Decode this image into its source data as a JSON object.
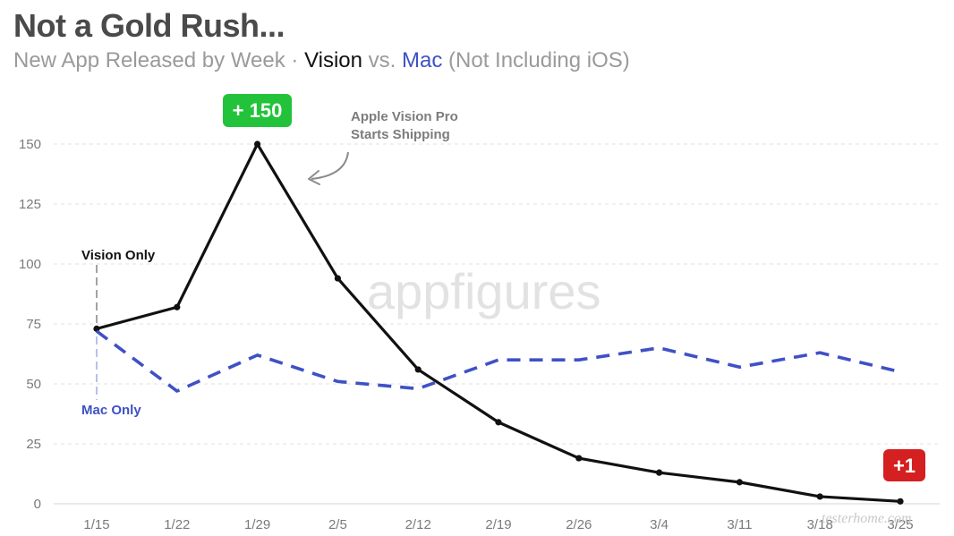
{
  "chart_data": {
    "type": "line",
    "title": "Not a Gold Rush...",
    "subtitle": {
      "prefix": "New App Released by Week · ",
      "vision": "Vision",
      "vs": " vs. ",
      "mac": "Mac",
      "suffix": " (Not Including iOS)"
    },
    "categories": [
      "1/15",
      "1/22",
      "1/29",
      "2/5",
      "2/12",
      "2/19",
      "2/26",
      "3/4",
      "3/11",
      "3/18",
      "3/25"
    ],
    "series": [
      {
        "name": "Vision Only",
        "color": "#111111",
        "style": "solid",
        "values": [
          73,
          82,
          150,
          94,
          56,
          34,
          19,
          13,
          9,
          3,
          1
        ]
      },
      {
        "name": "Mac Only",
        "color": "#3f51c5",
        "style": "dashed",
        "values": [
          72,
          47,
          62,
          51,
          48,
          60,
          60,
          65,
          57,
          63,
          55
        ]
      }
    ],
    "yticks": [
      0,
      25,
      50,
      75,
      100,
      125,
      150
    ],
    "ylim": [
      0,
      160
    ],
    "grid": true,
    "xlabel": "",
    "ylabel": "",
    "annotations": {
      "peak_badge": "+ 150",
      "peak_badge_color": "#22c33a",
      "peak_note_line1": "Apple Vision Pro",
      "peak_note_line2": "Starts Shipping",
      "end_badge": "+1",
      "end_badge_color": "#d42020"
    }
  },
  "watermark": "appfigures",
  "corner_watermark": "testerhome.com"
}
